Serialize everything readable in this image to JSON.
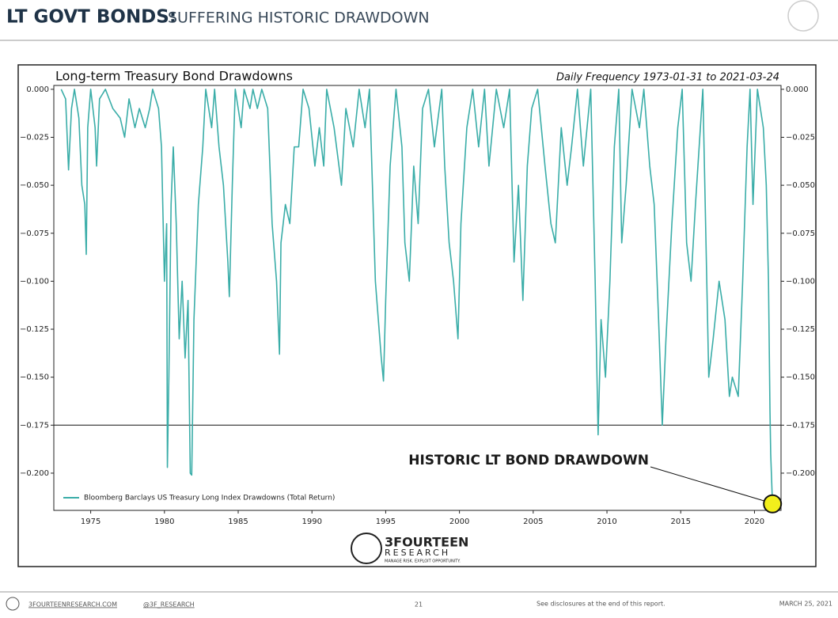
{
  "header": {
    "title": "LT GOVT BONDS:",
    "subtitle": "SUFFERING HISTORIC DRAWDOWN"
  },
  "chart_data": {
    "type": "line",
    "title": "Long-term Treasury Bond Drawdowns",
    "subtitle": "Daily Frequency 1973-01-31 to 2021-03-24",
    "x": [
      1973.0,
      1973.3,
      1973.5,
      1973.7,
      1973.9,
      1974.2,
      1974.4,
      1974.6,
      1974.7,
      1974.8,
      1975.0,
      1975.3,
      1975.4,
      1975.6,
      1976.0,
      1976.5,
      1977.0,
      1977.3,
      1977.6,
      1978.0,
      1978.3,
      1978.7,
      1979.0,
      1979.2,
      1979.6,
      1979.8,
      1980.0,
      1980.15,
      1980.2,
      1980.3,
      1980.45,
      1980.6,
      1980.8,
      1981.0,
      1981.2,
      1981.4,
      1981.6,
      1981.75,
      1981.85,
      1982.0,
      1982.3,
      1982.6,
      1982.8,
      1983.2,
      1983.4,
      1983.7,
      1984.0,
      1984.3,
      1984.4,
      1984.6,
      1984.8,
      1985.2,
      1985.4,
      1985.8,
      1986.0,
      1986.3,
      1986.6,
      1987.0,
      1987.3,
      1987.6,
      1987.8,
      1987.9,
      1988.2,
      1988.5,
      1988.8,
      1989.1,
      1989.4,
      1989.8,
      1990.2,
      1990.5,
      1990.8,
      1991.0,
      1991.5,
      1992.0,
      1992.3,
      1992.8,
      1993.2,
      1993.6,
      1993.9,
      1994.1,
      1994.3,
      1994.5,
      1994.7,
      1994.85,
      1995.0,
      1995.3,
      1995.7,
      1996.1,
      1996.3,
      1996.6,
      1996.9,
      1997.2,
      1997.5,
      1997.9,
      1998.3,
      1998.8,
      1999.0,
      1999.3,
      1999.6,
      1999.9,
      2000.1,
      2000.5,
      2000.9,
      2001.3,
      2001.7,
      2002.0,
      2002.5,
      2003.0,
      2003.4,
      2003.7,
      2004.0,
      2004.3,
      2004.6,
      2004.9,
      2005.3,
      2005.8,
      2006.2,
      2006.5,
      2006.9,
      2007.3,
      2007.6,
      2008.0,
      2008.4,
      2008.9,
      2009.2,
      2009.4,
      2009.6,
      2009.9,
      2010.2,
      2010.5,
      2010.8,
      2011.0,
      2011.3,
      2011.7,
      2012.2,
      2012.5,
      2012.9,
      2013.2,
      2013.5,
      2013.75,
      2014.0,
      2014.4,
      2014.8,
      2015.1,
      2015.4,
      2015.7,
      2016.0,
      2016.5,
      2016.9,
      2017.2,
      2017.6,
      2018.0,
      2018.3,
      2018.5,
      2018.9,
      2019.2,
      2019.5,
      2019.7,
      2019.9,
      2020.2,
      2020.4,
      2020.6,
      2020.8,
      2020.95,
      2021.05,
      2021.1,
      2021.22
    ],
    "series": [
      {
        "name": "Bloomberg Barclays US Treasury Long Index Drawdowns (Total Return)",
        "color": "#3aada8",
        "values": [
          0,
          -0.005,
          -0.042,
          -0.01,
          0,
          -0.015,
          -0.05,
          -0.06,
          -0.086,
          -0.02,
          0,
          -0.02,
          -0.04,
          -0.005,
          0,
          -0.01,
          -0.015,
          -0.025,
          -0.005,
          -0.02,
          -0.01,
          -0.02,
          -0.01,
          0,
          -0.01,
          -0.03,
          -0.1,
          -0.07,
          -0.197,
          -0.15,
          -0.06,
          -0.03,
          -0.07,
          -0.13,
          -0.1,
          -0.14,
          -0.11,
          -0.2,
          -0.201,
          -0.12,
          -0.06,
          -0.03,
          0,
          -0.02,
          0,
          -0.03,
          -0.05,
          -0.09,
          -0.108,
          -0.05,
          0,
          -0.02,
          0,
          -0.01,
          0,
          -0.01,
          0,
          -0.01,
          -0.07,
          -0.1,
          -0.138,
          -0.08,
          -0.06,
          -0.07,
          -0.03,
          -0.03,
          0,
          -0.01,
          -0.04,
          -0.02,
          -0.04,
          0,
          -0.02,
          -0.05,
          -0.01,
          -0.03,
          0,
          -0.02,
          0,
          -0.05,
          -0.1,
          -0.12,
          -0.14,
          -0.152,
          -0.11,
          -0.04,
          0,
          -0.03,
          -0.08,
          -0.1,
          -0.04,
          -0.07,
          -0.01,
          0,
          -0.03,
          0,
          -0.04,
          -0.08,
          -0.1,
          -0.13,
          -0.07,
          -0.02,
          0,
          -0.03,
          0,
          -0.04,
          0,
          -0.02,
          0,
          -0.09,
          -0.05,
          -0.11,
          -0.04,
          -0.01,
          0,
          -0.04,
          -0.07,
          -0.08,
          -0.02,
          -0.05,
          -0.03,
          0,
          -0.04,
          0,
          -0.1,
          -0.18,
          -0.12,
          -0.15,
          -0.1,
          -0.03,
          0,
          -0.08,
          -0.05,
          0,
          -0.02,
          0,
          -0.04,
          -0.06,
          -0.12,
          -0.175,
          -0.13,
          -0.07,
          -0.02,
          0,
          -0.08,
          -0.1,
          -0.06,
          0,
          -0.15,
          -0.13,
          -0.1,
          -0.12,
          -0.16,
          -0.15,
          -0.16,
          -0.1,
          -0.03,
          0,
          -0.06,
          0,
          -0.01,
          -0.02,
          -0.05,
          -0.1,
          -0.167,
          -0.19,
          -0.216
        ]
      }
    ],
    "xlim": [
      1972.5,
      2021.8
    ],
    "ylim": [
      -0.2194,
      0.002
    ],
    "xticks": [
      1975,
      1980,
      1985,
      1990,
      1995,
      2000,
      2005,
      2010,
      2015,
      2020
    ],
    "yticks": [
      {
        "value": 0,
        "label": "0.000"
      },
      {
        "value": -0.025,
        "label": "−0.025"
      },
      {
        "value": -0.05,
        "label": "−0.050"
      },
      {
        "value": -0.075,
        "label": "−0.075"
      },
      {
        "value": -0.1,
        "label": "−0.100"
      },
      {
        "value": -0.125,
        "label": "−0.125"
      },
      {
        "value": -0.15,
        "label": "−0.150"
      },
      {
        "value": -0.175,
        "label": "−0.175"
      },
      {
        "value": -0.2,
        "label": "−0.200"
      }
    ],
    "hline": -0.175,
    "annotation": {
      "text": "HISTORIC LT BOND DRAWDOWN",
      "x": 2021.22,
      "y": -0.216
    },
    "legend": "lower left"
  },
  "logo": {
    "name": "3FOURTEEN",
    "sub": "RESEARCH",
    "tagline": "MANAGE RISK. EXPLOIT OPPORTUNITY."
  },
  "footer": {
    "site": "3FOURTEENRESEARCH.COM",
    "handle": "@3F_RESEARCH",
    "page": "21",
    "note": "See disclosures at the end of this report.",
    "date": "MARCH 25, 2021"
  }
}
